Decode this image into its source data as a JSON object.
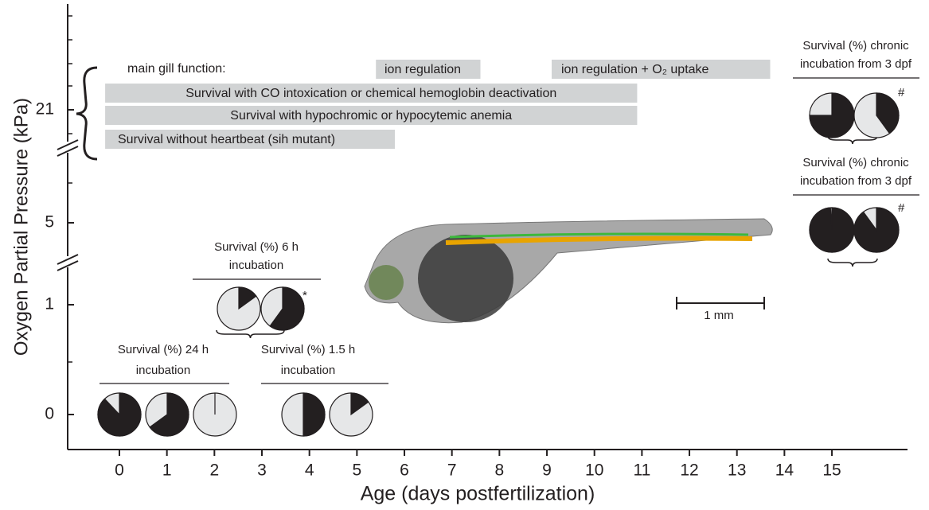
{
  "x_axis": {
    "label": "Age (days postfertilization)",
    "ticks": [
      0,
      1,
      2,
      3,
      4,
      5,
      6,
      7,
      8,
      9,
      10,
      11,
      12,
      13,
      14,
      15
    ]
  },
  "y_axis": {
    "label": "Oxygen Partial Pressure (kPa)",
    "ticks": [
      21,
      5,
      1,
      0
    ]
  },
  "gill_label": "main gill function:",
  "bars": [
    {
      "label": "ion regulation",
      "start": 5.4,
      "end": 7.6
    },
    {
      "label": "ion regulation + O₂ uptake",
      "start": 9.1,
      "end": 13.7
    },
    {
      "label": "Survival with CO intoxication or chemical hemoglobin deactivation",
      "start": -0.3,
      "end": 10.9
    },
    {
      "label": "Survival with hypochromic or hypocytemic anemia",
      "start": -0.3,
      "end": 10.9
    },
    {
      "label": "Survival without heartbeat (sih mutant)",
      "start": -0.3,
      "end": 5.8
    }
  ],
  "pie_groups": [
    {
      "title": [
        "Survival (%) 24 h",
        "incubation"
      ],
      "values": [
        88,
        65,
        0
      ]
    },
    {
      "title": [
        "Survival (%) 1.5 h",
        "incubation"
      ],
      "values": [
        50,
        15
      ]
    },
    {
      "title": [
        "Survival (%)  6 h",
        "incubation"
      ],
      "values": [
        15,
        60
      ],
      "note": "*"
    },
    {
      "title": [
        "Survival (%)  chronic",
        "incubation from 3 dpf"
      ],
      "values": [
        75,
        40
      ],
      "note": "#"
    },
    {
      "title": [
        "Survival (%)  chronic",
        "incubation from 3 dpf"
      ],
      "values": [
        99,
        90
      ],
      "note": "#"
    }
  ],
  "scale_bar": "1 mm"
}
